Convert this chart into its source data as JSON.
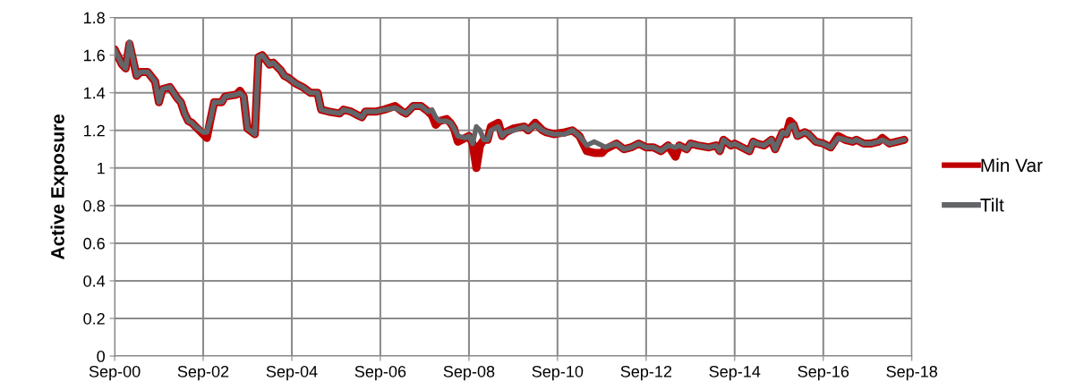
{
  "chart_data": {
    "type": "line",
    "ylabel": "Active Exposure",
    "x": [
      "2000-09",
      "2000-11",
      "2000-12",
      "2001-01",
      "2001-03",
      "2001-04",
      "2001-06",
      "2001-08",
      "2001-09",
      "2001-10",
      "2001-12",
      "2002-01",
      "2002-02",
      "2002-03",
      "2002-04",
      "2002-05",
      "2002-06",
      "2002-07",
      "2002-09",
      "2002-10",
      "2002-11",
      "2002-12",
      "2003-02",
      "2003-03",
      "2003-06",
      "2003-07",
      "2003-08",
      "2003-09",
      "2003-11",
      "2003-12",
      "2004-01",
      "2004-03",
      "2004-04",
      "2004-06",
      "2004-07",
      "2004-08",
      "2004-10",
      "2004-12",
      "2005-02",
      "2005-04",
      "2005-05",
      "2005-07",
      "2005-10",
      "2005-11",
      "2006-01",
      "2006-03",
      "2006-04",
      "2006-05",
      "2006-08",
      "2006-10",
      "2007-01",
      "2007-03",
      "2007-04",
      "2007-06",
      "2007-08",
      "2007-10",
      "2007-11",
      "2007-12",
      "2008-01",
      "2008-03",
      "2008-04",
      "2008-05",
      "2008-06",
      "2008-08",
      "2008-09",
      "2008-10",
      "2008-11",
      "2008-12",
      "2009-01",
      "2009-02",
      "2009-03",
      "2009-05",
      "2009-06",
      "2009-07",
      "2009-09",
      "2009-12",
      "2010-01",
      "2010-03",
      "2010-05",
      "2010-06",
      "2010-08",
      "2010-11",
      "2011-01",
      "2011-03",
      "2011-05",
      "2011-07",
      "2011-09",
      "2011-10",
      "2012-01",
      "2012-03",
      "2012-05",
      "2012-07",
      "2012-09",
      "2012-11",
      "2013-01",
      "2013-03",
      "2013-05",
      "2013-06",
      "2013-08",
      "2013-09",
      "2013-11",
      "2014-02",
      "2014-04",
      "2014-05",
      "2014-06",
      "2014-08",
      "2014-09",
      "2014-11",
      "2015-01",
      "2015-02",
      "2015-03",
      "2015-05",
      "2015-07",
      "2015-08",
      "2015-10",
      "2015-11",
      "2015-12",
      "2016-01",
      "2016-02",
      "2016-04",
      "2016-05",
      "2016-07",
      "2016-09",
      "2016-11",
      "2017-01",
      "2017-03",
      "2017-05",
      "2017-06",
      "2017-08",
      "2017-10",
      "2017-12",
      "2018-01",
      "2018-03",
      "2018-05",
      "2018-07"
    ],
    "series": [
      {
        "name": "Min Var",
        "color": "#c00000",
        "values": [
          1.63,
          1.55,
          1.53,
          1.66,
          1.49,
          1.51,
          1.51,
          1.46,
          1.35,
          1.42,
          1.43,
          1.4,
          1.37,
          1.35,
          1.29,
          1.25,
          1.24,
          1.22,
          1.18,
          1.16,
          1.26,
          1.35,
          1.35,
          1.38,
          1.39,
          1.41,
          1.38,
          1.21,
          1.18,
          1.59,
          1.6,
          1.55,
          1.56,
          1.52,
          1.49,
          1.48,
          1.45,
          1.43,
          1.4,
          1.4,
          1.31,
          1.3,
          1.29,
          1.31,
          1.3,
          1.28,
          1.27,
          1.3,
          1.3,
          1.31,
          1.33,
          1.3,
          1.29,
          1.33,
          1.33,
          1.3,
          1.28,
          1.23,
          1.25,
          1.26,
          1.24,
          1.21,
          1.14,
          1.16,
          1.17,
          1.13,
          1.0,
          1.12,
          1.15,
          1.15,
          1.22,
          1.24,
          1.17,
          1.19,
          1.21,
          1.22,
          1.2,
          1.24,
          1.2,
          1.19,
          1.18,
          1.19,
          1.2,
          1.17,
          1.09,
          1.08,
          1.08,
          1.1,
          1.13,
          1.1,
          1.11,
          1.13,
          1.11,
          1.11,
          1.09,
          1.12,
          1.06,
          1.12,
          1.1,
          1.13,
          1.12,
          1.11,
          1.12,
          1.09,
          1.15,
          1.12,
          1.13,
          1.11,
          1.09,
          1.14,
          1.13,
          1.12,
          1.15,
          1.1,
          1.19,
          1.18,
          1.25,
          1.23,
          1.17,
          1.19,
          1.18,
          1.14,
          1.13,
          1.11,
          1.17,
          1.15,
          1.14,
          1.15,
          1.13,
          1.13,
          1.14,
          1.16,
          1.13,
          1.14,
          1.15
        ]
      },
      {
        "name": "Tilt",
        "color": "#636569",
        "values": [
          1.63,
          1.55,
          1.53,
          1.67,
          1.49,
          1.51,
          1.51,
          1.46,
          1.35,
          1.42,
          1.43,
          1.4,
          1.37,
          1.35,
          1.29,
          1.25,
          1.24,
          1.22,
          1.19,
          1.19,
          1.26,
          1.35,
          1.35,
          1.38,
          1.39,
          1.4,
          1.38,
          1.21,
          1.18,
          1.59,
          1.6,
          1.55,
          1.56,
          1.52,
          1.49,
          1.48,
          1.45,
          1.43,
          1.4,
          1.4,
          1.31,
          1.3,
          1.29,
          1.31,
          1.3,
          1.28,
          1.27,
          1.3,
          1.3,
          1.31,
          1.32,
          1.3,
          1.29,
          1.33,
          1.33,
          1.3,
          1.31,
          1.27,
          1.25,
          1.25,
          1.24,
          1.21,
          1.17,
          1.16,
          1.17,
          1.13,
          1.22,
          1.2,
          1.15,
          1.15,
          1.2,
          1.22,
          1.17,
          1.19,
          1.2,
          1.22,
          1.2,
          1.23,
          1.2,
          1.19,
          1.18,
          1.18,
          1.2,
          1.17,
          1.12,
          1.14,
          1.12,
          1.11,
          1.13,
          1.1,
          1.11,
          1.13,
          1.11,
          1.11,
          1.09,
          1.12,
          1.11,
          1.12,
          1.1,
          1.13,
          1.12,
          1.11,
          1.12,
          1.09,
          1.15,
          1.12,
          1.13,
          1.11,
          1.09,
          1.14,
          1.13,
          1.12,
          1.15,
          1.1,
          1.19,
          1.18,
          1.22,
          1.23,
          1.17,
          1.19,
          1.18,
          1.14,
          1.13,
          1.11,
          1.16,
          1.15,
          1.14,
          1.15,
          1.13,
          1.13,
          1.14,
          1.15,
          1.13,
          1.14,
          1.15
        ]
      }
    ],
    "xlim": [
      "2000-09",
      "2018-09"
    ],
    "xticks": [
      {
        "value": "2000-09",
        "label": "Sep-00"
      },
      {
        "value": "2002-09",
        "label": "Sep-02"
      },
      {
        "value": "2004-09",
        "label": "Sep-04"
      },
      {
        "value": "2006-09",
        "label": "Sep-06"
      },
      {
        "value": "2008-09",
        "label": "Sep-08"
      },
      {
        "value": "2010-09",
        "label": "Sep-10"
      },
      {
        "value": "2012-09",
        "label": "Sep-12"
      },
      {
        "value": "2014-09",
        "label": "Sep-14"
      },
      {
        "value": "2016-09",
        "label": "Sep-16"
      },
      {
        "value": "2018-09",
        "label": "Sep-18"
      }
    ],
    "ylim": [
      0,
      1.8
    ],
    "yticks": [
      0,
      0.2,
      0.4,
      0.6,
      0.8,
      1,
      1.2,
      1.4,
      1.6,
      1.8
    ],
    "grid": true,
    "legend": "right",
    "marker": "none",
    "line_style": "solid"
  }
}
